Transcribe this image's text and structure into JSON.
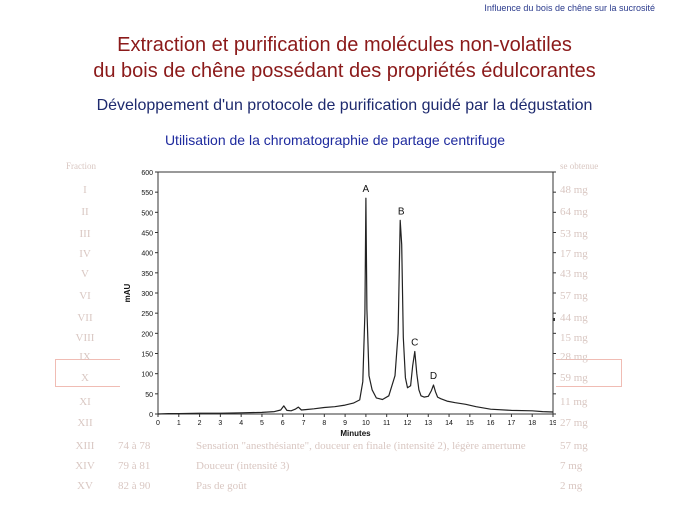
{
  "header": {
    "note": "Influence du bois de chêne sur la sucrosité"
  },
  "title": {
    "line1": "Extraction et purification de molécules non-volatiles",
    "line2": "du bois de chêne possédant des propriétés édulcorantes"
  },
  "subtitle": "Développement d'un protocole de purification guidé par la dégustation",
  "subtitle2": "Utilisation de la chromatographie de partage centrifuge",
  "faded_table": {
    "header_left": "Fraction",
    "header_right": "se obtenue",
    "rows": [
      {
        "num": "I",
        "fr": "",
        "desc": "",
        "mass": "48 mg"
      },
      {
        "num": "II",
        "fr": "",
        "desc": "",
        "mass": "64 mg"
      },
      {
        "num": "III",
        "fr": "",
        "desc": "",
        "mass": "53 mg"
      },
      {
        "num": "IV",
        "fr": "",
        "desc": "",
        "mass": "17 mg"
      },
      {
        "num": "V",
        "fr": "",
        "desc": "",
        "mass": "43 mg"
      },
      {
        "num": "VI",
        "fr": "",
        "desc": "",
        "mass": "57 mg"
      },
      {
        "num": "VII",
        "fr": "",
        "desc": "",
        "mass": "44 mg"
      },
      {
        "num": "VIII",
        "fr": "",
        "desc": "",
        "mass": "15 mg"
      },
      {
        "num": "IX",
        "fr": "",
        "desc": "",
        "mass": "28 mg"
      },
      {
        "num": "X",
        "fr": "",
        "desc": "",
        "mass": "59 mg"
      },
      {
        "num": "XI",
        "fr": "",
        "desc": "",
        "mass": "11 mg"
      },
      {
        "num": "XII",
        "fr": "",
        "desc": "",
        "mass": "27 mg"
      },
      {
        "num": "XIII",
        "fr": "74 à 78",
        "desc": "Sensation \"anesthésiante\", douceur en finale (intensité 2), légère amertume",
        "mass": "57 mg"
      },
      {
        "num": "XIV",
        "fr": "79 à 81",
        "desc": "Douceur (intensité 3)",
        "mass": "7 mg"
      },
      {
        "num": "XV",
        "fr": "82 à 90",
        "desc": "Pas de goût",
        "mass": "2 mg"
      }
    ]
  },
  "chart_data": {
    "type": "line",
    "xlabel": "Minutes",
    "ylabel": "mAU",
    "xlim": [
      0,
      19
    ],
    "ylim": [
      0,
      600
    ],
    "xticks": [
      0,
      1,
      2,
      3,
      4,
      5,
      6,
      7,
      8,
      9,
      10,
      11,
      12,
      13,
      14,
      15,
      16,
      17,
      18,
      19
    ],
    "yticks": [
      0,
      50,
      100,
      150,
      200,
      250,
      300,
      350,
      400,
      450,
      500,
      550,
      600
    ],
    "series": [
      {
        "color": "#222222",
        "x": [
          0,
          0.5,
          1,
          2,
          3,
          4,
          5,
          5.6,
          5.9,
          6.05,
          6.2,
          6.4,
          6.6,
          6.75,
          6.9,
          7.1,
          7.5,
          8,
          8.5,
          9,
          9.4,
          9.7,
          9.85,
          9.95,
          10.0,
          10.05,
          10.15,
          10.3,
          10.5,
          10.8,
          11.1,
          11.4,
          11.55,
          11.65,
          11.72,
          11.8,
          11.9,
          12.0,
          12.15,
          12.25,
          12.35,
          12.45,
          12.55,
          12.65,
          12.8,
          13.0,
          13.15,
          13.25,
          13.35,
          13.45,
          13.6,
          13.9,
          14.3,
          14.8,
          15.3,
          16,
          17,
          18,
          18.5,
          19
        ],
        "y": [
          0,
          1,
          1,
          2,
          2,
          3,
          4,
          6,
          10,
          20,
          9,
          8,
          12,
          17,
          10,
          11,
          13,
          16,
          18,
          22,
          27,
          35,
          80,
          250,
          535,
          260,
          95,
          60,
          40,
          36,
          45,
          95,
          200,
          480,
          420,
          190,
          90,
          65,
          70,
          120,
          155,
          100,
          60,
          45,
          42,
          44,
          58,
          72,
          55,
          42,
          38,
          32,
          28,
          24,
          18,
          12,
          9,
          8,
          6,
          5
        ]
      }
    ],
    "annotations": [
      {
        "label": "A",
        "x": 10.0,
        "y": 535
      },
      {
        "label": "B",
        "x": 11.7,
        "y": 480
      },
      {
        "label": "C",
        "x": 12.35,
        "y": 155
      },
      {
        "label": "D",
        "x": 13.25,
        "y": 72
      }
    ]
  }
}
